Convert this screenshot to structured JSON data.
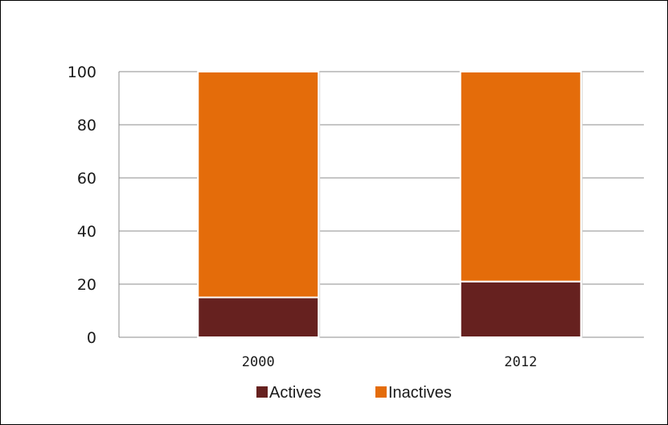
{
  "chart_data": {
    "type": "bar",
    "stacked": true,
    "title": "",
    "xlabel": "",
    "ylabel": "",
    "categories": [
      "2000",
      "2012"
    ],
    "series": [
      {
        "name": "Actives",
        "color": "#66211f",
        "values": [
          15,
          21
        ]
      },
      {
        "name": "Inactives",
        "color": "#e46c0a",
        "values": [
          85,
          79
        ]
      }
    ],
    "ylim": [
      0,
      100
    ],
    "yticks": [
      0,
      20,
      40,
      60,
      80,
      100
    ],
    "grid": true,
    "legend_position": "bottom"
  }
}
